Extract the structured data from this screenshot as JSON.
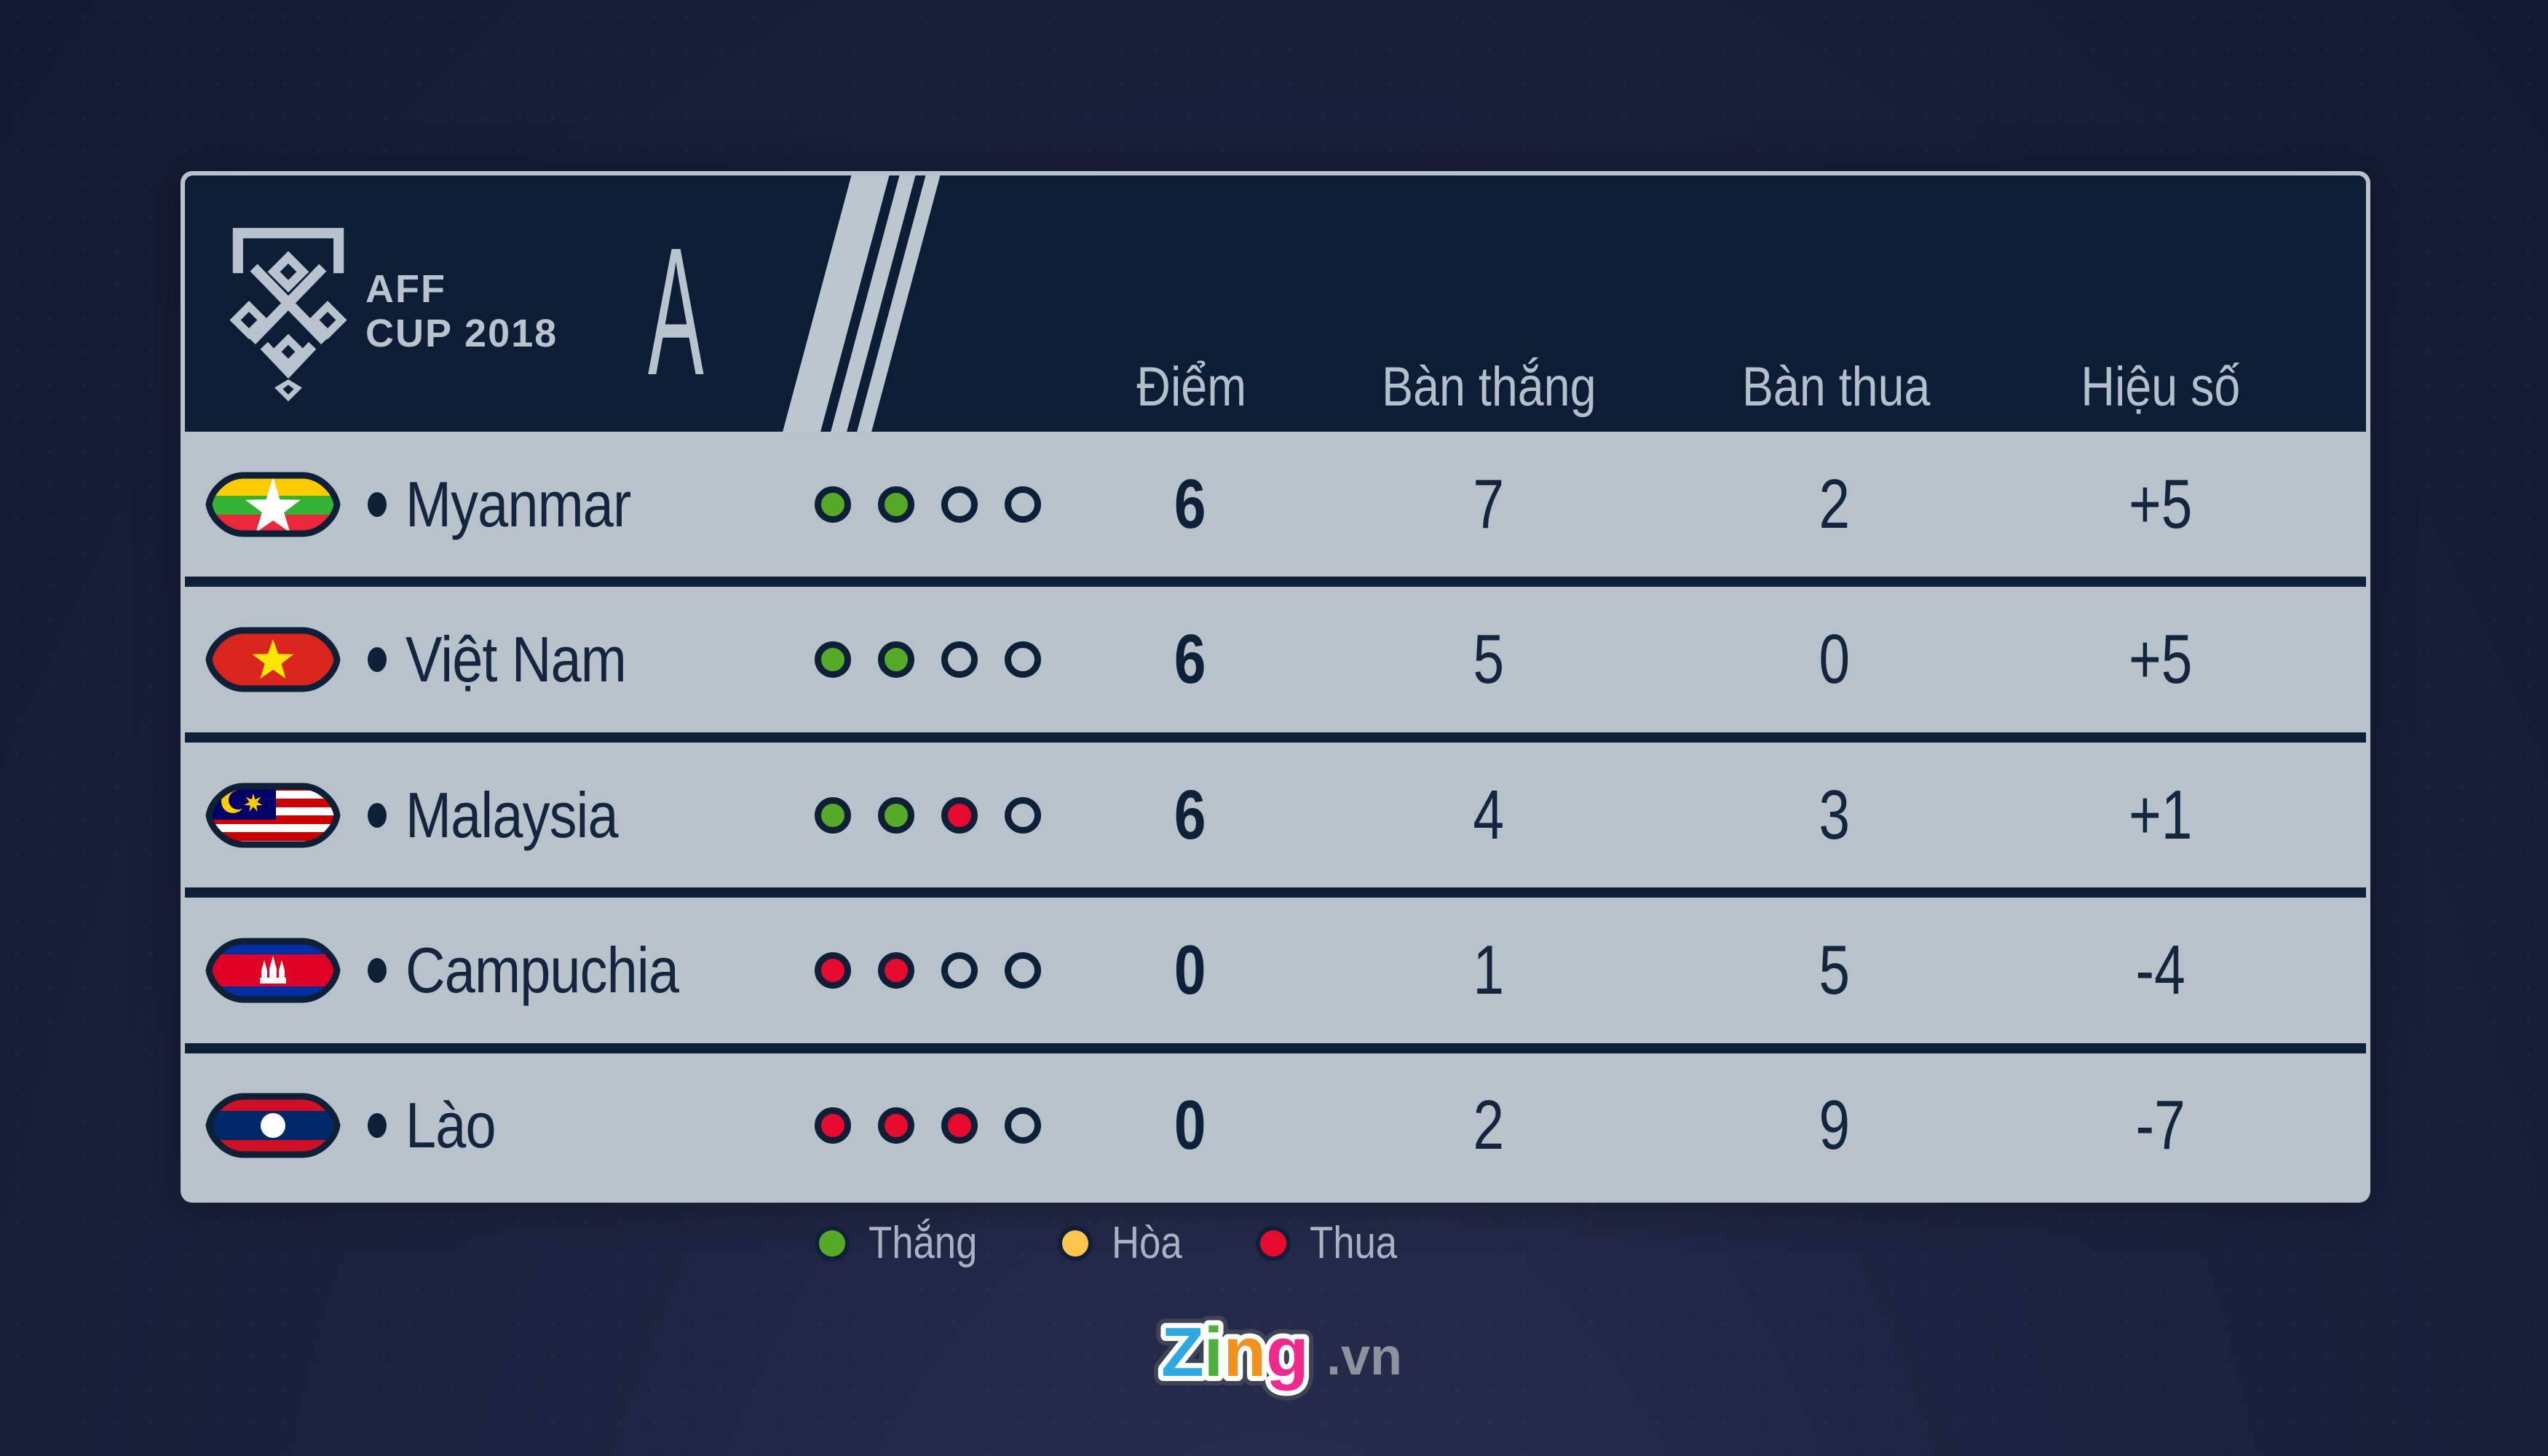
{
  "header": {
    "tournament_line1": "AFF",
    "tournament_line2": "CUP 2018",
    "group_letter": "A"
  },
  "columns": [
    "Điểm",
    "Bàn thắng",
    "Bàn thua",
    "Hiệu số"
  ],
  "standings": [
    {
      "team": "Myanmar",
      "flag": "myanmar",
      "form": [
        "win",
        "win",
        "empty",
        "empty"
      ],
      "points": "6",
      "goals_for": "7",
      "goals_against": "2",
      "goal_diff": "+5"
    },
    {
      "team": "Việt Nam",
      "flag": "vietnam",
      "form": [
        "win",
        "win",
        "empty",
        "empty"
      ],
      "points": "6",
      "goals_for": "5",
      "goals_against": "0",
      "goal_diff": "+5"
    },
    {
      "team": "Malaysia",
      "flag": "malaysia",
      "form": [
        "win",
        "win",
        "loss",
        "empty"
      ],
      "points": "6",
      "goals_for": "4",
      "goals_against": "3",
      "goal_diff": "+1"
    },
    {
      "team": "Campuchia",
      "flag": "cambodia",
      "form": [
        "loss",
        "loss",
        "empty",
        "empty"
      ],
      "points": "0",
      "goals_for": "1",
      "goals_against": "5",
      "goal_diff": "-4"
    },
    {
      "team": "Lào",
      "flag": "laos",
      "form": [
        "loss",
        "loss",
        "loss",
        "empty"
      ],
      "points": "0",
      "goals_for": "2",
      "goals_against": "9",
      "goal_diff": "-7"
    }
  ],
  "legend": [
    {
      "status": "win",
      "label": "Thắng"
    },
    {
      "status": "draw",
      "label": "Hòa"
    },
    {
      "status": "loss",
      "label": "Thua"
    }
  ],
  "footer": {
    "brand": "Zing",
    "brand_letters": [
      "Z",
      "i",
      "n",
      "g"
    ],
    "domain": ".vn"
  },
  "colors": {
    "win_green": "#57aa28",
    "draw_yellow": "#fbc54e",
    "loss_red": "#e50a2e",
    "header_navy": "#0d1d36",
    "row_gray": "#b7c2cb",
    "text_navy": "#15253e",
    "light_accent": "#bcc6cf",
    "brand_z": "#2fa8e0",
    "brand_i": "#4caf3e",
    "brand_n": "#f29120",
    "brand_g": "#ef2a8d",
    "brand_domain_gray": "#8d929d"
  }
}
